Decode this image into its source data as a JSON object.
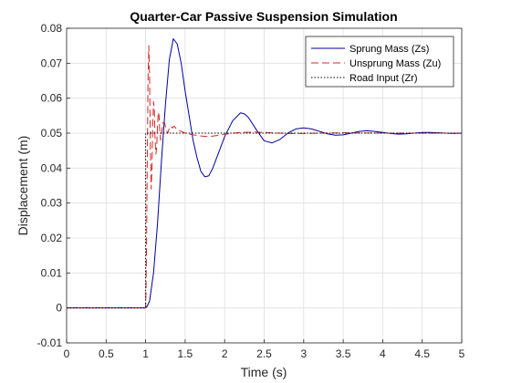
{
  "chart_data": {
    "type": "line",
    "title": "Quarter-Car Passive Suspension Simulation",
    "xlabel": "Time (s)",
    "ylabel": "Displacement (m)",
    "xlim": [
      0,
      5
    ],
    "ylim": [
      -0.01,
      0.08
    ],
    "xticks": [
      "0",
      "0.5",
      "1",
      "1.5",
      "2",
      "2.5",
      "3",
      "3.5",
      "4",
      "4.5",
      "5"
    ],
    "yticks": [
      "-0.01",
      "0",
      "0.01",
      "0.02",
      "0.03",
      "0.04",
      "0.05",
      "0.06",
      "0.07",
      "0.08"
    ],
    "grid": true,
    "legend_position": "top-right",
    "series": [
      {
        "name": "Sprung Mass (Zs)",
        "color": "#0000a0",
        "style": "solid",
        "x": [
          0,
          1.0,
          1.02,
          1.05,
          1.1,
          1.15,
          1.2,
          1.25,
          1.3,
          1.35,
          1.4,
          1.45,
          1.5,
          1.55,
          1.6,
          1.65,
          1.7,
          1.75,
          1.8,
          1.85,
          1.9,
          2.0,
          2.1,
          2.2,
          2.25,
          2.3,
          2.4,
          2.5,
          2.6,
          2.7,
          2.8,
          2.9,
          3.0,
          3.1,
          3.2,
          3.3,
          3.4,
          3.5,
          3.6,
          3.7,
          3.8,
          3.9,
          4.0,
          4.1,
          4.2,
          4.3,
          4.4,
          4.5,
          4.6,
          4.7,
          4.8,
          4.9,
          5.0
        ],
        "y": [
          0,
          0,
          0.0005,
          0.002,
          0.01,
          0.024,
          0.042,
          0.058,
          0.071,
          0.077,
          0.0755,
          0.07,
          0.062,
          0.055,
          0.048,
          0.043,
          0.039,
          0.0375,
          0.0378,
          0.04,
          0.043,
          0.049,
          0.0535,
          0.0558,
          0.0555,
          0.0545,
          0.051,
          0.0478,
          0.0472,
          0.0482,
          0.05,
          0.0512,
          0.0515,
          0.0512,
          0.0505,
          0.0498,
          0.0494,
          0.0495,
          0.05,
          0.0505,
          0.0507,
          0.0505,
          0.0502,
          0.0499,
          0.0497,
          0.0498,
          0.05,
          0.0502,
          0.0502,
          0.0501,
          0.05,
          0.0499,
          0.05
        ]
      },
      {
        "name": "Unsprung Mass (Zu)",
        "color": "#d62728",
        "style": "dashed",
        "x": [
          0,
          1.0,
          1.005,
          1.01,
          1.02,
          1.03,
          1.04,
          1.05,
          1.06,
          1.07,
          1.08,
          1.09,
          1.1,
          1.11,
          1.12,
          1.13,
          1.14,
          1.15,
          1.16,
          1.17,
          1.18,
          1.19,
          1.2,
          1.22,
          1.24,
          1.26,
          1.28,
          1.3,
          1.32,
          1.34,
          1.36,
          1.38,
          1.4,
          1.45,
          1.5,
          1.6,
          1.7,
          1.8,
          1.9,
          2.0,
          2.2,
          2.4,
          2.6,
          2.8,
          3.0,
          3.5,
          4.0,
          4.5,
          5.0
        ],
        "y": [
          0,
          0,
          0.005,
          0.015,
          0.04,
          0.065,
          0.075,
          0.066,
          0.046,
          0.034,
          0.04,
          0.052,
          0.059,
          0.057,
          0.048,
          0.044,
          0.046,
          0.052,
          0.056,
          0.055,
          0.05,
          0.048,
          0.05,
          0.053,
          0.053,
          0.051,
          0.05,
          0.0515,
          0.052,
          0.0515,
          0.052,
          0.0515,
          0.051,
          0.0505,
          0.05,
          0.0495,
          0.0492,
          0.049,
          0.0493,
          0.0497,
          0.0502,
          0.0503,
          0.0501,
          0.0499,
          0.0499,
          0.0501,
          0.05,
          0.05,
          0.05
        ]
      },
      {
        "name": "Road Input (Zr)",
        "color": "#000000",
        "style": "dotted",
        "x": [
          0,
          1.0,
          1.0,
          5.0
        ],
        "y": [
          0,
          0,
          0.05,
          0.05
        ]
      }
    ]
  }
}
